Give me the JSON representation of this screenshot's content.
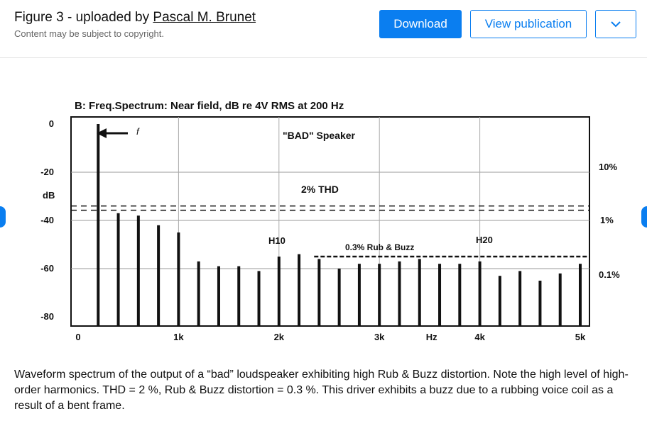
{
  "header": {
    "title_prefix": "Figure 3 - uploaded by ",
    "author": "Pascal M. Brunet",
    "subtitle": "Content may be subject to copyright.",
    "download_label": "Download",
    "view_label": "View publication",
    "more_icon": "chevron-down-icon"
  },
  "nav": {
    "left_icon": "chevron-left-icon",
    "right_icon": "chevron-right-icon"
  },
  "figure": {
    "panel_title": "B: Freq.Spectrum: Near field, dB re 4V RMS at 200 Hz",
    "speaker_label": "\"BAD\" Speaker",
    "f_label": "f",
    "thd_label": "2% THD",
    "rub_buzz_label": "0.3% Rub & Buzz",
    "h10_label": "H10",
    "h20_label": "H20",
    "right_labels": [
      "10%",
      "1%",
      "0.1%"
    ]
  },
  "chart_data": {
    "type": "bar",
    "title": "B: Freq.Spectrum: Near field, dB re 4V RMS at 200 Hz",
    "ylabel": "dB",
    "xlabel": "Hz",
    "ylim": [
      -90,
      0
    ],
    "xlim": [
      0,
      5200
    ],
    "x_ticks": [
      "0",
      "1k",
      "2k",
      "3k",
      "Hz",
      "4k",
      "5k"
    ],
    "y_ticks": [
      "0",
      "-20",
      "-40",
      "-60",
      "-80"
    ],
    "grid": true,
    "series": [
      {
        "x": [
          200,
          400,
          600,
          800,
          1000,
          1200,
          1400,
          1600,
          1800,
          2000,
          2200,
          2400,
          2600,
          2800,
          3000,
          3200,
          3400,
          3600,
          3800,
          4000,
          4200,
          4400,
          4600,
          4800,
          5000
        ],
        "values": [
          0,
          -37,
          -38,
          -42,
          -45,
          -57,
          -59,
          -59,
          -61,
          -55,
          -54,
          -56,
          -60,
          -58,
          -58,
          -57,
          -56,
          -58,
          -58,
          -57,
          -63,
          -61,
          -65,
          -62,
          -58
        ]
      }
    ],
    "reference_lines": [
      {
        "label": "2% THD",
        "y": -34
      },
      {
        "label": "0.3% Rub & Buzz",
        "y": -55
      }
    ]
  },
  "caption": "Waveform spectrum of the output of a “bad” loudspeaker exhibiting high Rub & Buzz distortion. Note the high level of high-order harmonics. THD = 2 %, Rub & Buzz distortion = 0.3 %. This driver exhibits a buzz due to a rubbing voice coil as a result of a bent frame."
}
